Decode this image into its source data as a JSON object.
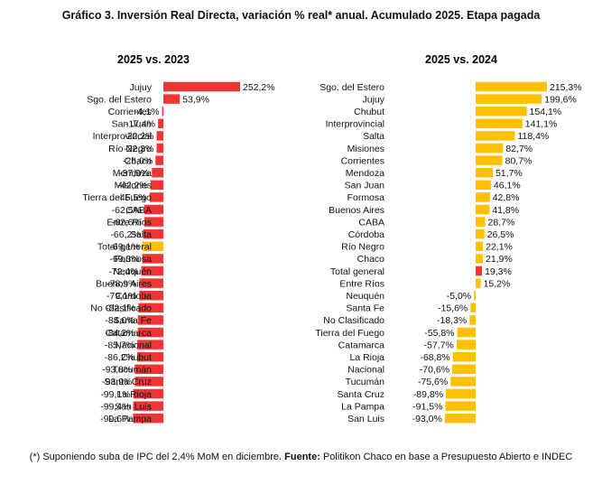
{
  "title": "Gráfico 3. Inversión Real Directa, variación % real* anual. Acumulado 2025. Etapa pagada",
  "footnote": {
    "text": "(*) Suponiendo suba de IPC del 2,4% MoM en diciembre. ",
    "source_label": "Fuente:",
    "source_text": " Politikon Chaco en base a Presupuesto Abierto e INDEC"
  },
  "colors": {
    "highlight": "#f03535",
    "highlight_alt": "#ffc000"
  },
  "chart_data": [
    {
      "type": "bar",
      "orientation": "horizontal",
      "title": "2025 vs. 2023",
      "bar_color": "#f03535",
      "highlight_color": "#ffc000",
      "highlight_category": "Total general",
      "categories": [
        "Jujuy",
        "Sgo. del Estero",
        "Corrientes",
        "San Juan",
        "Interprovincial",
        "Río Negro",
        "Chaco",
        "Mendoza",
        "Misiones",
        "Tierra del Fuego",
        "CABA",
        "Entre Ríos",
        "Salta",
        "Total general",
        "Formosa",
        "Neuquén",
        "Buenos Aires",
        "Córdoba",
        "No Clasificado",
        "Santa Fe",
        "Catamarca",
        "Nacional",
        "Chubut",
        "Tucumán",
        "Santa Cruz",
        "La Rioja",
        "San Luis",
        "La Pampa"
      ],
      "values": [
        252.2,
        53.9,
        -4.1,
        -17.4,
        -22.2,
        -22.3,
        -26.0,
        -37.9,
        -42.2,
        -45.5,
        -62.5,
        -62.6,
        -66.2,
        -69.1,
        -69.3,
        -72.4,
        -78.9,
        -79.1,
        -82.1,
        -84.0,
        -84.2,
        -85.7,
        -86.2,
        -93.8,
        -93.9,
        -99.1,
        -99.4,
        -99.6
      ],
      "labels": [
        "252,2%",
        "53,9%",
        "-4,1%",
        "-17,4%",
        "-22,2%",
        "-22,3%",
        "-26,0%",
        "-37,9%",
        "-42,2%",
        "-45,5%",
        "-62,5%",
        "-62,6%",
        "-66,2%",
        "-69,1%",
        "-69,3%",
        "-72,4%",
        "-78,9%",
        "-79,1%",
        "-82,1%",
        "-84,0%",
        "-84,2%",
        "-85,7%",
        "-86,2%",
        "-93,8%",
        "-93,9%",
        "-99,1%",
        "-99,4%",
        "-99,6%"
      ],
      "unit": "%"
    },
    {
      "type": "bar",
      "orientation": "horizontal",
      "title": "2025 vs. 2024",
      "bar_color": "#ffc000",
      "highlight_color": "#f03535",
      "highlight_category": "Total general",
      "categories": [
        "Sgo. del Estero",
        "Jujuy",
        "Chubut",
        "Interprovincial",
        "Salta",
        "Misiones",
        "Corrientes",
        "Mendoza",
        "San Juan",
        "Formosa",
        "Buenos Aires",
        "CABA",
        "Córdoba",
        "Río Negro",
        "Chaco",
        "Total general",
        "Entre Ríos",
        "Neuquén",
        "Santa Fe",
        "No Clasificado",
        "Tierra del Fuego",
        "Catamarca",
        "La Rioja",
        "Nacional",
        "Tucumán",
        "Santa Cruz",
        "La Pampa",
        "San Luis"
      ],
      "values": [
        215.3,
        199.6,
        154.1,
        141.1,
        118.4,
        82.7,
        80.7,
        51.7,
        46.1,
        42.8,
        41.8,
        28.7,
        26.5,
        22.1,
        21.9,
        19.3,
        15.2,
        -5.0,
        -15.6,
        -18.3,
        -55.8,
        -57.7,
        -68.8,
        -70.6,
        -75.6,
        -89.8,
        -91.5,
        -93.0
      ],
      "labels": [
        "215,3%",
        "199,6%",
        "154,1%",
        "141,1%",
        "118,4%",
        "82,7%",
        "80,7%",
        "51,7%",
        "46,1%",
        "42,8%",
        "41,8%",
        "28,7%",
        "26,5%",
        "22,1%",
        "21,9%",
        "19,3%",
        "15,2%",
        "-5,0%",
        "-15,6%",
        "-18,3%",
        "-55,8%",
        "-57,7%",
        "-68,8%",
        "-70,6%",
        "-75,6%",
        "-89,8%",
        "-91,5%",
        "-93,0%"
      ],
      "unit": "%"
    }
  ]
}
